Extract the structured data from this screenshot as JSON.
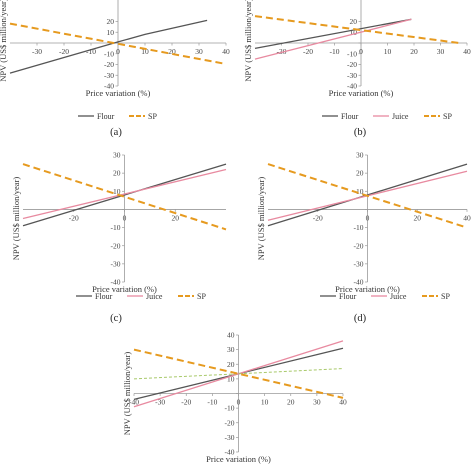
{
  "chart_data": [
    {
      "type": "line",
      "panel_label": "(a)",
      "xlabel": "Price variation (%)",
      "ylabel": "NPV (US$ million/year)",
      "xlim": [
        -40,
        40
      ],
      "ylim": [
        -40,
        40
      ],
      "xticks": [
        -30,
        -20,
        -10,
        0,
        10,
        20,
        30,
        40
      ],
      "yticks": [
        -40,
        -30,
        -20,
        -10,
        0,
        10,
        20
      ],
      "grid": false,
      "legend": "bottom",
      "series": [
        {
          "name": "Flour",
          "color": "#555555",
          "style": "solid",
          "x": [
            -40,
            0,
            10,
            33
          ],
          "y": [
            -28,
            1,
            8,
            21
          ]
        },
        {
          "name": "SP",
          "color": "#e69a1f",
          "style": "dashed",
          "x": [
            -40,
            40
          ],
          "y": [
            18,
            -19.5
          ]
        }
      ]
    },
    {
      "type": "line",
      "panel_label": "(b)",
      "xlabel": "Price variation (%)",
      "ylabel": "NPV (US$ million/year)",
      "xlim": [
        -40,
        40
      ],
      "ylim": [
        -40,
        40
      ],
      "xticks": [
        -30,
        -20,
        -10,
        0,
        10,
        20,
        30,
        40
      ],
      "yticks": [
        -40,
        -30,
        -20,
        -10,
        0,
        10,
        20
      ],
      "grid": false,
      "legend": "bottom",
      "series": [
        {
          "name": "Flour",
          "color": "#555555",
          "style": "solid",
          "x": [
            -40,
            19
          ],
          "y": [
            -5,
            22
          ]
        },
        {
          "name": "Juice",
          "color": "#e88aa0",
          "style": "solid",
          "x": [
            -40,
            19
          ],
          "y": [
            -15,
            22
          ]
        },
        {
          "name": "SP",
          "color": "#e69a1f",
          "style": "dashed",
          "x": [
            -40,
            37
          ],
          "y": [
            25,
            0
          ]
        }
      ]
    },
    {
      "type": "line",
      "panel_label": "(c)",
      "xlabel": "Price variation (%)",
      "ylabel": "NPV (US$ million/year)",
      "xlim": [
        -40,
        40
      ],
      "ylim": [
        -40,
        30
      ],
      "xticks": [
        -20,
        0,
        20
      ],
      "yticks": [
        -40,
        -30,
        -20,
        -10,
        0,
        10,
        20,
        30
      ],
      "grid": false,
      "legend": "bottom",
      "series": [
        {
          "name": "Flour",
          "color": "#555555",
          "style": "solid",
          "x": [
            -40,
            40
          ],
          "y": [
            -9,
            25
          ]
        },
        {
          "name": "Juice",
          "color": "#e88aa0",
          "style": "solid",
          "x": [
            -40,
            40
          ],
          "y": [
            -5,
            22
          ]
        },
        {
          "name": "SP",
          "color": "#e69a1f",
          "style": "dashed",
          "x": [
            -40,
            40
          ],
          "y": [
            25,
            -11
          ]
        }
      ]
    },
    {
      "type": "line",
      "panel_label": "(d)",
      "xlabel": "Price variation (%)",
      "ylabel": "NPV (US$ million/year)",
      "xlim": [
        -40,
        40
      ],
      "ylim": [
        -40,
        30
      ],
      "xticks": [
        -20,
        0,
        20,
        40
      ],
      "yticks": [
        -40,
        -30,
        -20,
        -10,
        0,
        10,
        20,
        30
      ],
      "grid": false,
      "legend": "bottom",
      "series": [
        {
          "name": "Flour",
          "color": "#555555",
          "style": "solid",
          "x": [
            -40,
            40
          ],
          "y": [
            -9,
            25
          ]
        },
        {
          "name": "Juice",
          "color": "#e88aa0",
          "style": "solid",
          "x": [
            -40,
            40
          ],
          "y": [
            -6,
            21
          ]
        },
        {
          "name": "SP",
          "color": "#e69a1f",
          "style": "dashed",
          "x": [
            -40,
            40
          ],
          "y": [
            25,
            -10
          ]
        }
      ]
    },
    {
      "type": "line",
      "panel_label": "",
      "xlabel": "Price variation (%)",
      "ylabel": "NPV (US$ million/year)",
      "xlim": [
        -40,
        40
      ],
      "ylim": [
        -40,
        40
      ],
      "xticks": [
        -40,
        -30,
        -20,
        -10,
        0,
        10,
        20,
        30,
        40
      ],
      "yticks": [
        -40,
        -30,
        -20,
        -10,
        0,
        10,
        20,
        30,
        40
      ],
      "grid": false,
      "legend": "bottom",
      "series": [
        {
          "name": "",
          "color": "#555555",
          "style": "solid",
          "x": [
            -40,
            40
          ],
          "y": [
            -4,
            31
          ]
        },
        {
          "name": "",
          "color": "#e88aa0",
          "style": "solid",
          "x": [
            -40,
            40
          ],
          "y": [
            -9,
            36
          ]
        },
        {
          "name": "",
          "color": "#a8c96a",
          "style": "dashed-thin",
          "x": [
            -40,
            40
          ],
          "y": [
            10,
            17
          ]
        },
        {
          "name": "",
          "color": "#e69a1f",
          "style": "dashed",
          "x": [
            -40,
            40
          ],
          "y": [
            30,
            -3
          ]
        }
      ]
    }
  ]
}
